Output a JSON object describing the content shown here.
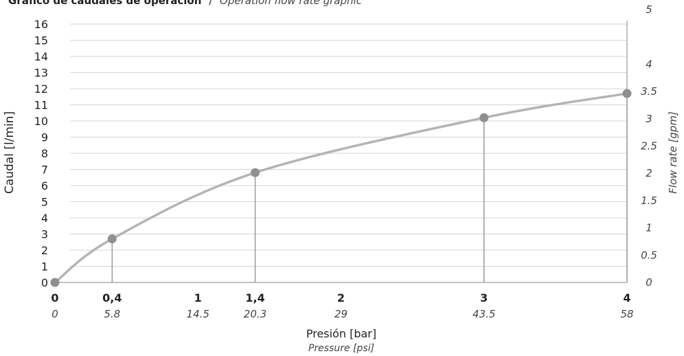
{
  "chart_data": {
    "type": "line",
    "title": "Gráfico de caudales de operación",
    "title_separator": "/",
    "subtitle": "Operation flow rate graphic",
    "xlabel": "Presión [bar]",
    "xlabel_secondary": "Pressure [psi]",
    "ylabel": "Caudal [l/min]",
    "ylabel_secondary": "Flow rate [gpm]",
    "xlim": [
      0,
      4
    ],
    "ylim": [
      0,
      16
    ],
    "y2lim": [
      0,
      5
    ],
    "grid": true,
    "x_ticks": [
      {
        "bar": 0,
        "label": "0",
        "psi": "0"
      },
      {
        "bar": 0.4,
        "label": "0,4",
        "psi": "5.8"
      },
      {
        "bar": 1,
        "label": "1",
        "psi": "14.5"
      },
      {
        "bar": 1.4,
        "label": "1,4",
        "psi": "20.3"
      },
      {
        "bar": 2,
        "label": "2",
        "psi": "29"
      },
      {
        "bar": 3,
        "label": "3",
        "psi": "43.5"
      },
      {
        "bar": 4,
        "label": "4",
        "psi": "58"
      }
    ],
    "y_ticks": [
      "0",
      "1",
      "2",
      "3",
      "4",
      "5",
      "6",
      "7",
      "8",
      "9",
      "10",
      "11",
      "12",
      "13",
      "14",
      "15",
      "16"
    ],
    "y2_ticks": [
      {
        "value": 0,
        "label": "0"
      },
      {
        "value": 0.5,
        "label": "0.5"
      },
      {
        "value": 1,
        "label": "1"
      },
      {
        "value": 1.5,
        "label": "1.5"
      },
      {
        "value": 2,
        "label": "2"
      },
      {
        "value": 2.5,
        "label": "2.5"
      },
      {
        "value": 3,
        "label": "3"
      },
      {
        "value": 3.5,
        "label": "3.5"
      },
      {
        "value": 4,
        "label": "4"
      },
      {
        "value": 5,
        "label": "5"
      }
    ],
    "series": [
      {
        "points": [
          {
            "x": 0,
            "y": 0
          },
          {
            "x": 0.4,
            "y": 2.7
          },
          {
            "x": 1.4,
            "y": 6.8
          },
          {
            "x": 3,
            "y": 10.2
          },
          {
            "x": 4,
            "y": 11.7
          }
        ]
      }
    ],
    "colors": {
      "curve": "#b4b4b4",
      "marker": "#8f8f8f",
      "grid": "#d4d4d4",
      "axis": "#9a9a9a"
    }
  }
}
